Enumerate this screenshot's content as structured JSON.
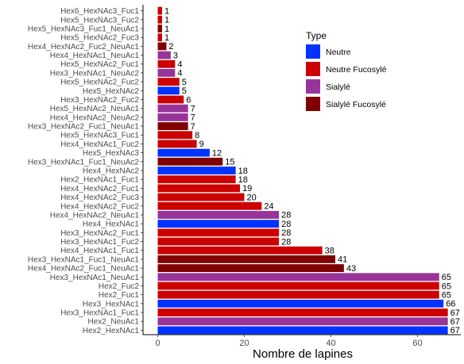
{
  "chart_data": {
    "type": "bar",
    "orientation": "horizontal",
    "title": "",
    "xlabel": "Nombre de lapines",
    "ylabel": "",
    "xlim": [
      -3.4,
      70
    ],
    "xticks": [
      0,
      20,
      40,
      60
    ],
    "grid": false,
    "legend": {
      "title": "Type",
      "position": "top-right",
      "entries": [
        {
          "label": "Neutre",
          "color": "#0033FF"
        },
        {
          "label": "Neutre Fucosylé",
          "color": "#CC0000"
        },
        {
          "label": "Sialylé",
          "color": "#993399"
        },
        {
          "label": "Sialylé Fucosylé",
          "color": "#800000"
        }
      ]
    },
    "categories": [
      "Hex6_HexNAc3_Fuc1",
      "Hex5_HexNAc3_Fuc2",
      "Hex5_HexNAc3_Fuc1_NeuAc1",
      "Hex5_HexNAc2_Fuc3",
      "Hex4_HexNAc2_Fuc2_NeuAc1",
      "Hex4_HexNAc1_NeuAc1",
      "Hex5_HexNAc2_Fuc1",
      "Hex3_HexNAc1_NeuAc2",
      "Hex5_HexNAc2_Fuc2",
      "Hex5_HexNAc2",
      "Hex3_HexNAc2_Fuc2",
      "Hex5_HexNAc2_NeuAc1",
      "Hex4_HexNAc2_NeuAc2",
      "Hex3_HexNAc2_Fuc1_NeuAc1",
      "Hex5_HexNAc3_Fuc1",
      "Hex4_HexNAc1_Fuc2",
      "Hex5_HexNAc3",
      "Hex3_HexNAc1_Fuc1_NeuAc2",
      "Hex4_HexNAc2",
      "Hex2_HexNAc1_Fuc1",
      "Hex4_HexNAc2_Fuc1",
      "Hex4_HexNAc2_Fuc3",
      "Hex4_HexNAc2_Fuc2",
      "Hex4_HexNAc2_NeuAc1",
      "Hex4_HexNAc1",
      "Hex3_HexNAc2_Fuc1",
      "Hex3_HexNAc1_Fuc2",
      "Hex4_HexNAc1_Fuc1",
      "Hex3_HexNAc1_Fuc1_NeuAc1",
      "Hex4_HexNAc2_Fuc1_NeuAc1",
      "Hex3_HexNAc1_NeuAc1",
      "Hex2_Fuc2",
      "Hex2_Fuc1",
      "Hex3_HexNAc1",
      "Hex3_HexNAc1_Fuc1",
      "Hex2_NeuAc1",
      "Hex2_HexNAc1"
    ],
    "values": [
      1,
      1,
      1,
      1,
      2,
      3,
      4,
      4,
      5,
      5,
      6,
      7,
      7,
      7,
      8,
      9,
      12,
      15,
      18,
      18,
      19,
      20,
      24,
      28,
      28,
      28,
      28,
      38,
      41,
      43,
      65,
      65,
      65,
      66,
      67,
      67,
      67
    ],
    "types": [
      "Neutre Fucosylé",
      "Neutre Fucosylé",
      "Sialylé Fucosylé",
      "Neutre Fucosylé",
      "Sialylé Fucosylé",
      "Sialylé",
      "Neutre Fucosylé",
      "Sialylé",
      "Neutre Fucosylé",
      "Neutre",
      "Neutre Fucosylé",
      "Sialylé",
      "Sialylé",
      "Sialylé Fucosylé",
      "Neutre Fucosylé",
      "Neutre Fucosylé",
      "Neutre",
      "Sialylé Fucosylé",
      "Neutre",
      "Neutre Fucosylé",
      "Neutre Fucosylé",
      "Neutre Fucosylé",
      "Neutre Fucosylé",
      "Sialylé",
      "Neutre",
      "Neutre Fucosylé",
      "Neutre Fucosylé",
      "Neutre Fucosylé",
      "Sialylé Fucosylé",
      "Sialylé Fucosylé",
      "Sialylé",
      "Neutre Fucosylé",
      "Neutre Fucosylé",
      "Neutre",
      "Neutre Fucosylé",
      "Sialylé",
      "Neutre"
    ]
  }
}
